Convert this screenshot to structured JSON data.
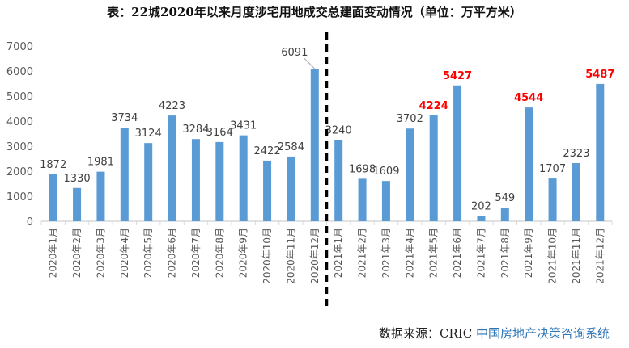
{
  "chart_data": {
    "type": "bar",
    "title": "表：22城2020年以来月度涉宅用地成交总建面变动情况（单位：万平方米）",
    "categories": [
      "2020年1月",
      "2020年2月",
      "2020年3月",
      "2020年4月",
      "2020年5月",
      "2020年6月",
      "2020年7月",
      "2020年8月",
      "2020年9月",
      "2020年10月",
      "2020年11月",
      "2020年12月",
      "2021年1月",
      "2021年2月",
      "2021年3月",
      "2021年4月",
      "2021年5月",
      "2021年6月",
      "2021年7月",
      "2021年8月",
      "2021年9月",
      "2021年10月",
      "2021年11月",
      "2021年12月"
    ],
    "values": [
      1872,
      1330,
      1981,
      3734,
      3124,
      4223,
      3284,
      3164,
      3431,
      2422,
      2584,
      6091,
      3240,
      1698,
      1609,
      3702,
      4224,
      5427,
      202,
      549,
      4544,
      1707,
      2323,
      5487
    ],
    "highlighted_labels": [
      16,
      17,
      20,
      23
    ],
    "ylim": [
      0,
      7000
    ],
    "yticks": [
      0,
      1000,
      2000,
      3000,
      4000,
      5000,
      6000,
      7000
    ],
    "xlabel": "",
    "ylabel": "",
    "grid": false,
    "bar_color": "#5b9bd5",
    "highlight_color": "#ff0000",
    "divider": "between 2020年12月 and 2021年1月 (dashed)"
  },
  "source": {
    "prefix": "数据来源：CRIC ",
    "name": "中国房地产决策咨询系统"
  }
}
